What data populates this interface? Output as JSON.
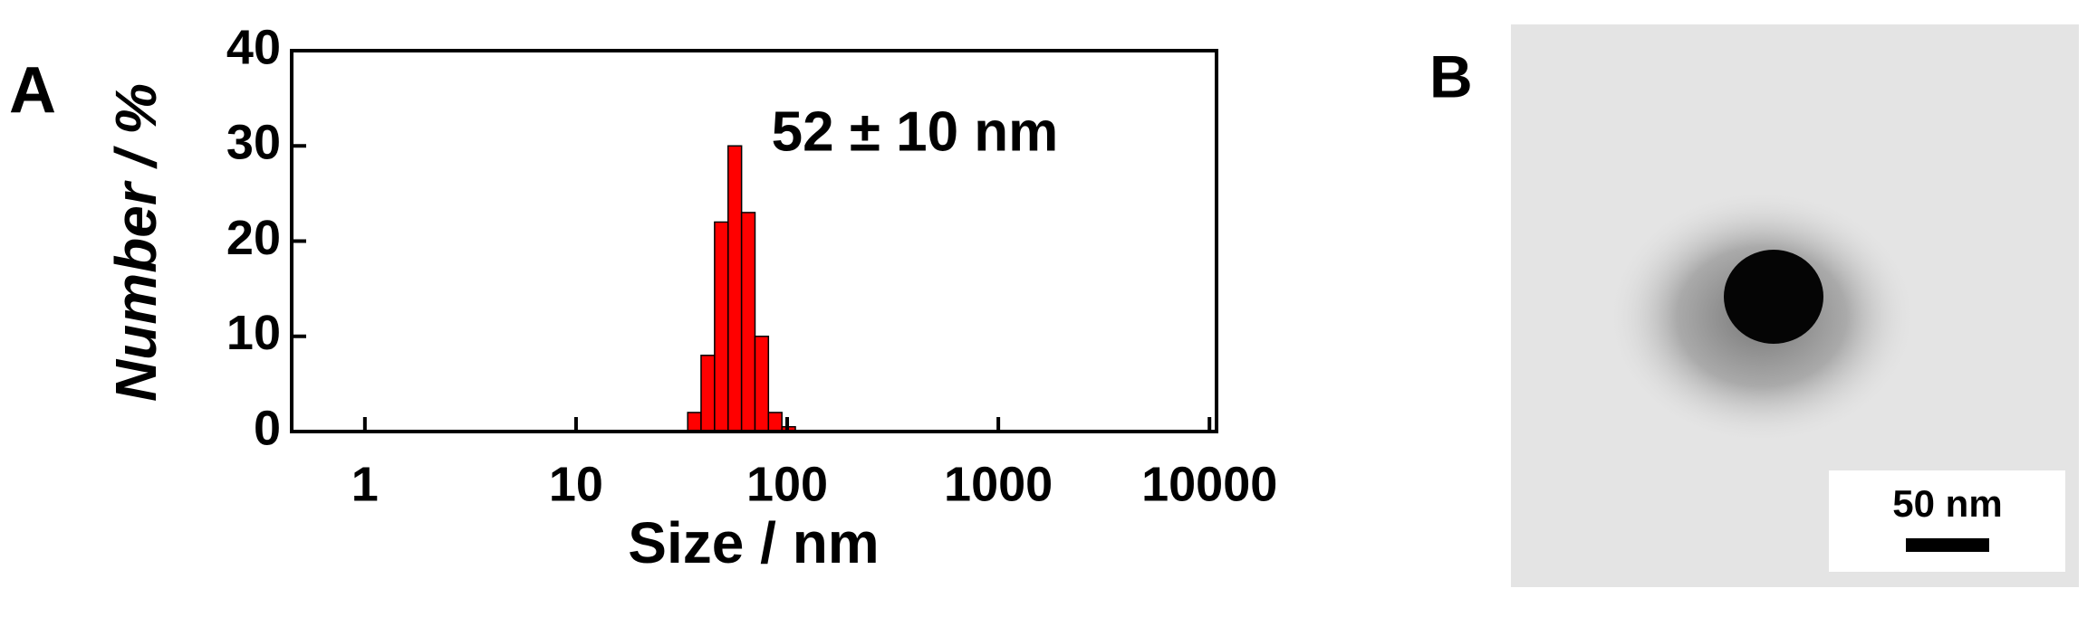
{
  "chart_data": {
    "type": "histogram",
    "panel_label": "A",
    "annotation": "52 ± 10 nm",
    "x_label": "Size / nm",
    "y_label": "Number / %",
    "bins": [
      33.8,
      39.1,
      45.3,
      52.5,
      60.8,
      70.4,
      81.5,
      94.4,
      109.3
    ],
    "values": [
      2,
      8,
      22,
      30,
      23,
      10,
      2,
      0.5
    ],
    "color": "#ff0000",
    "x_log": true,
    "xlim": [
      0.45,
      10800
    ],
    "xticks": [
      1,
      10,
      100,
      1000,
      10000
    ],
    "ylim": [
      0,
      40
    ],
    "yticks": [
      0,
      10,
      20,
      30,
      40
    ]
  },
  "image_panel": {
    "panel_label": "B",
    "scale_bar_label": "50 nm"
  }
}
